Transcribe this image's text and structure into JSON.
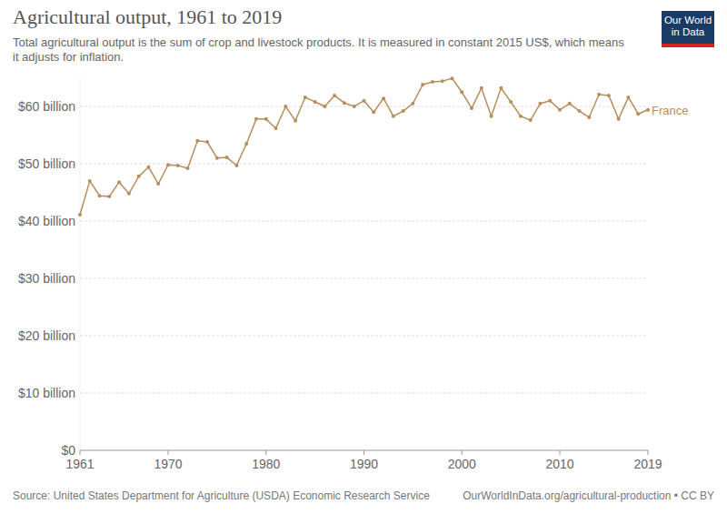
{
  "chart_data": {
    "type": "line",
    "title": "Agricultural output, 1961 to 2019",
    "subtitle": "Total agricultural output is the sum of crop and livestock products. It is measured in constant 2015 US$, which means it adjusts for inflation.",
    "logo": [
      "Our World",
      "in Data"
    ],
    "source": "Source: United States Department for Agriculture (USDA) Economic Research Service",
    "url": "OurWorldInData.org/agricultural-production • CC BY",
    "x": [
      1961,
      1962,
      1963,
      1964,
      1965,
      1966,
      1967,
      1968,
      1969,
      1970,
      1971,
      1972,
      1973,
      1974,
      1975,
      1976,
      1977,
      1978,
      1979,
      1980,
      1981,
      1982,
      1983,
      1984,
      1985,
      1986,
      1987,
      1988,
      1989,
      1990,
      1991,
      1992,
      1993,
      1994,
      1995,
      1996,
      1997,
      1998,
      1999,
      2000,
      2001,
      2002,
      2003,
      2004,
      2005,
      2006,
      2007,
      2008,
      2009,
      2010,
      2011,
      2012,
      2013,
      2014,
      2015,
      2016,
      2017,
      2018,
      2019
    ],
    "series": [
      {
        "name": "France",
        "color": "#b88d5c",
        "marker": "circle",
        "values": [
          41100000000,
          47000000000,
          44400000000,
          44300000000,
          46800000000,
          44800000000,
          47800000000,
          49400000000,
          46500000000,
          49800000000,
          49700000000,
          49200000000,
          54000000000,
          53800000000,
          51000000000,
          51100000000,
          49700000000,
          53500000000,
          57800000000,
          57800000000,
          56200000000,
          60000000000,
          57500000000,
          61600000000,
          60800000000,
          60000000000,
          61900000000,
          60600000000,
          60000000000,
          61000000000,
          59000000000,
          61400000000,
          58300000000,
          59200000000,
          60500000000,
          63800000000,
          64300000000,
          64400000000,
          64900000000,
          62500000000,
          59700000000,
          63200000000,
          58300000000,
          63200000000,
          60800000000,
          58300000000,
          57600000000,
          60500000000,
          61000000000,
          59400000000,
          60500000000,
          59200000000,
          58100000000,
          62100000000,
          61900000000,
          57800000000,
          61600000000,
          58700000000,
          59400000000
        ]
      }
    ],
    "xlim": [
      1961,
      2019
    ],
    "xticks": [
      1961,
      1970,
      1980,
      1990,
      2000,
      2010,
      2019
    ],
    "ylim": [
      0,
      65000000000
    ],
    "yticks": [
      {
        "value": 0,
        "label": "$0"
      },
      {
        "value": 10000000000,
        "label": "$10 billion"
      },
      {
        "value": 20000000000,
        "label": "$20 billion"
      },
      {
        "value": 30000000000,
        "label": "$30 billion"
      },
      {
        "value": 40000000000,
        "label": "$40 billion"
      },
      {
        "value": 50000000000,
        "label": "$50 billion"
      },
      {
        "value": 60000000000,
        "label": "$60 billion"
      }
    ],
    "grid": true
  }
}
